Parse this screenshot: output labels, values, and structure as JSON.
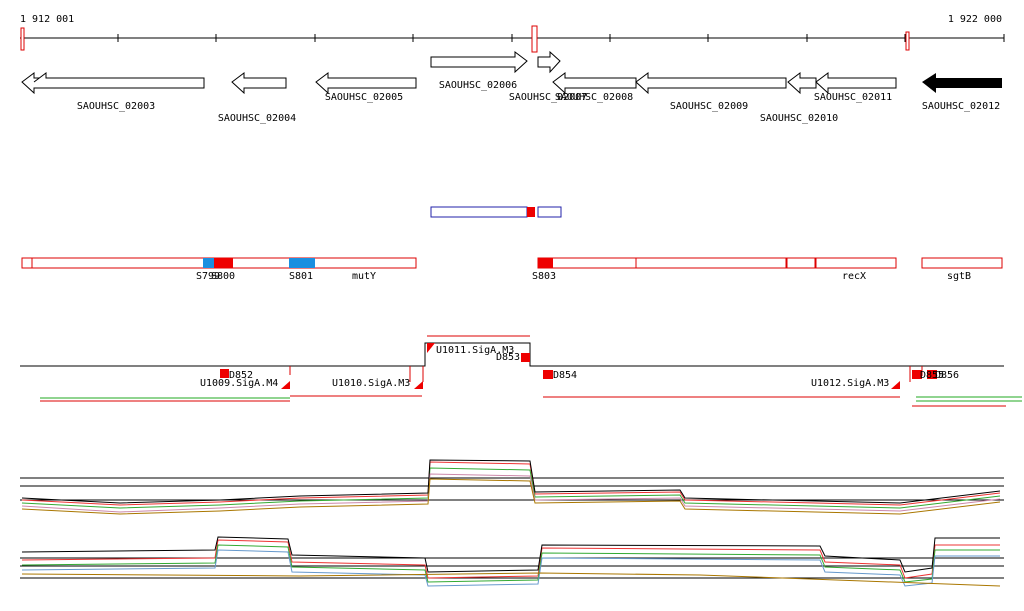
{
  "ruler": {
    "start": "1 912 001",
    "end": "1 922 000"
  },
  "genes": [
    "SAOUHSC_02003",
    "SAOUHSC_02004",
    "SAOUHSC_02005",
    "SAOUHSC_02006",
    "SAOUHSC_02007",
    "SAOUHSC_02008",
    "SAOUHSC_02009",
    "SAOUHSC_02010",
    "SAOUHSC_02011",
    "SAOUHSC_02012"
  ],
  "features": [
    "S799",
    "S800",
    "S801",
    "mutY",
    "S803",
    "recX",
    "sgtB"
  ],
  "transcripts": [
    "U1011.SigA.M3",
    "D853",
    "D852",
    "U1009.SigA.M4",
    "U1010.SigA.M3",
    "D854",
    "U1012.SigA.M3",
    "D855",
    "D856"
  ]
}
